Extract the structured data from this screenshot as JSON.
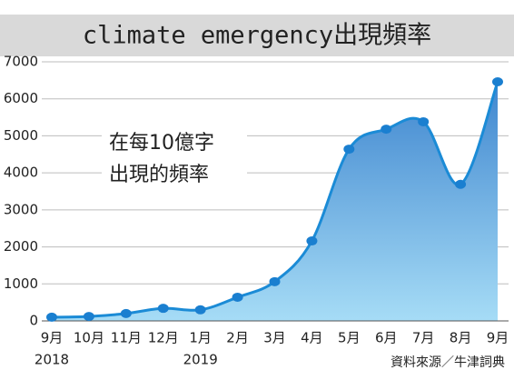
{
  "chart_data": {
    "type": "area-line",
    "title": "climate emergency出現頻率",
    "annotation": [
      "在每10億字",
      "出現的頻率"
    ],
    "source": "資料來源／牛津詞典",
    "categories": [
      "9月",
      "10月",
      "11月",
      "12月",
      "1月",
      "2月",
      "3月",
      "4月",
      "5月",
      "6月",
      "7月",
      "8月",
      "9月"
    ],
    "year_labels": [
      "2018",
      null,
      null,
      null,
      "2019",
      null,
      null,
      null,
      null,
      null,
      null,
      null,
      null
    ],
    "values": [
      100,
      120,
      200,
      340,
      300,
      640,
      1060,
      2160,
      4640,
      5180,
      5380,
      3690,
      6460
    ],
    "color": "#1b8bd6",
    "ylim": [
      0,
      7000
    ],
    "yticks": [
      0,
      1000,
      2000,
      3000,
      4000,
      5000,
      6000,
      7000
    ],
    "grid": true
  }
}
